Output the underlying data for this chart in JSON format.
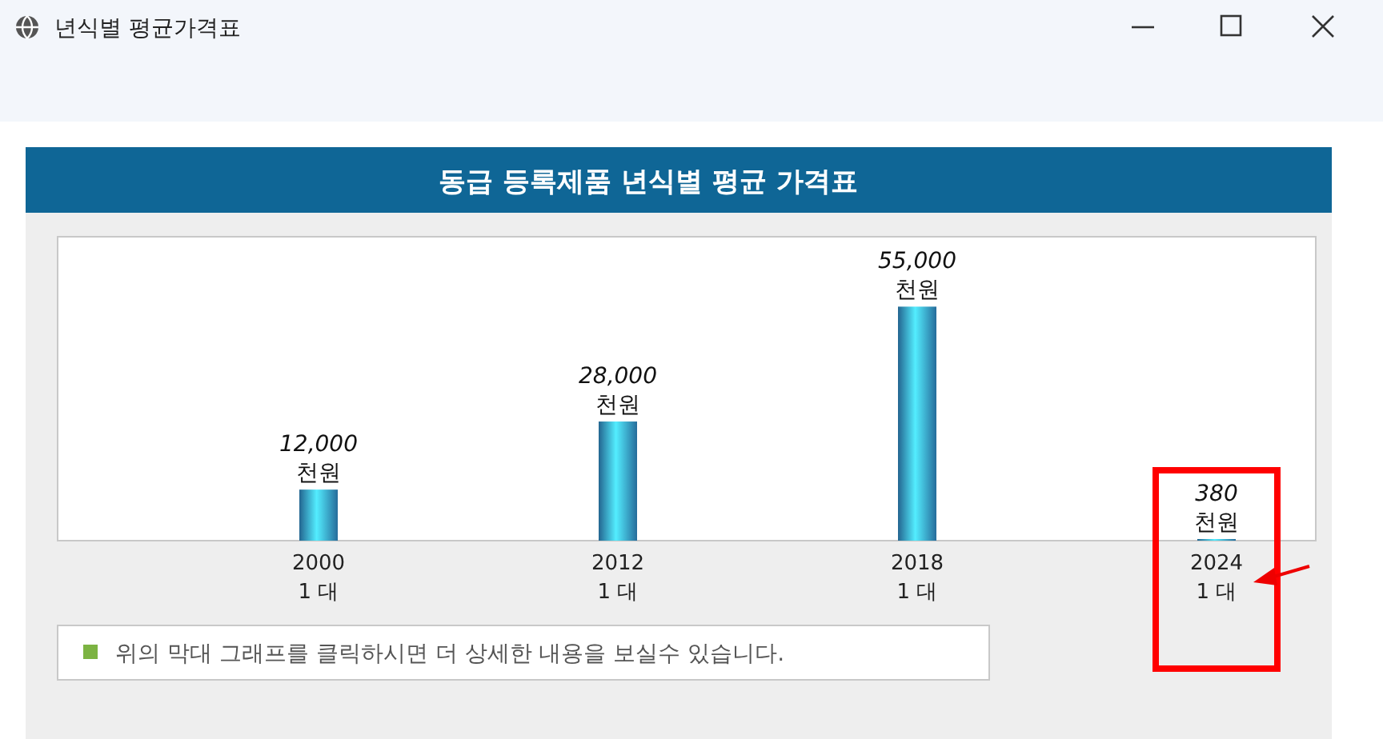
{
  "chart_data": {
    "type": "bar",
    "title": "동급 등록제품 년식별 평균 가격표",
    "categories": [
      "2000\n1 대",
      "2012\n1 대",
      "2018\n1 대",
      "2024\n1 대"
    ],
    "values": [
      12000,
      28000,
      55000,
      380
    ],
    "value_labels": [
      "12,000\n천원",
      "28,000\n천원",
      "55,000\n천원",
      "380\n천원"
    ],
    "color": "#2f86c0",
    "annotations": [
      "년식별 평균가격표",
      "위의 막대 그래프를 클릭하시면 더 상세한 내용을 보실수 있습니다."
    ]
  }
}
